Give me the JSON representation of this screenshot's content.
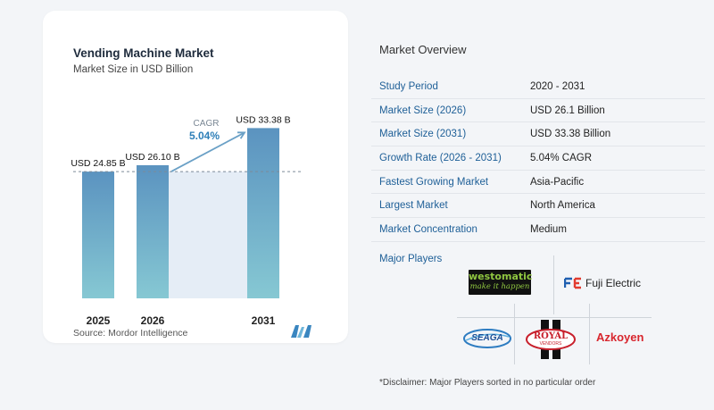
{
  "chart": {
    "title": "Vending Machine Market",
    "subtitle": "Market Size in USD Billion",
    "source": "Source:  Mordor Intelligence",
    "cagr_label": "CAGR",
    "cagr_value": "5.04%"
  },
  "chart_data": {
    "type": "bar",
    "categories": [
      "2025",
      "2026",
      "2031"
    ],
    "values": [
      24.85,
      26.1,
      33.38
    ],
    "data_labels": [
      "USD 24.85 B",
      "USD 26.10 B",
      "USD 33.38 B"
    ],
    "ylim": [
      0,
      34.5
    ],
    "grid": false,
    "colors": {
      "bar_top": "#5b93c0",
      "bar_bottom": "#86c8d3",
      "band": "#e5edf6",
      "arrow": "#6aa0c6",
      "cagr": "#2e7fb8"
    }
  },
  "overview": {
    "title": "Market Overview",
    "rows": [
      {
        "label": "Study Period",
        "value": "2020 - 2031"
      },
      {
        "label": "Market Size (2026)",
        "value": "USD 26.1 Billion"
      },
      {
        "label": "Market Size (2031)",
        "value": "USD 33.38 Billion"
      },
      {
        "label": "Growth Rate (2026 - 2031)",
        "value": "5.04% CAGR"
      },
      {
        "label": "Fastest Growing Market",
        "value": "Asia-Pacific"
      },
      {
        "label": "Largest Market",
        "value": "North America"
      },
      {
        "label": "Market Concentration",
        "value": "Medium"
      }
    ]
  },
  "players": {
    "title": "Major Players",
    "westomatic": "westomatic",
    "westomatic_tagline": "make it happen",
    "fuji": "Fuji Electric",
    "seaga": "SEAGA",
    "royal": "ROYAL",
    "royal_sub": "VENDORS",
    "azkoyen": "Azkoyen"
  },
  "disclaimer": "*Disclaimer: Major Players sorted in no particular order"
}
